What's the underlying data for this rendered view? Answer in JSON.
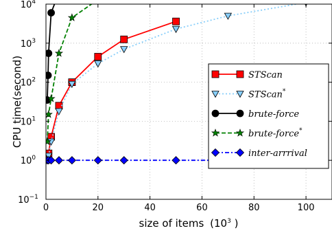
{
  "chart_data": {
    "type": "line",
    "xlabel": "size of items",
    "xlabel_unit": "(10",
    "xlabel_unit_exp": "3",
    "xlabel_unit_close": " )",
    "ylabel": "CPU time(second)",
    "xlim": [
      0,
      110
    ],
    "ylim": [
      0.1,
      10000
    ],
    "yscale": "log",
    "grid": true,
    "legend_position": "center-right",
    "x_ticks": [
      0,
      20,
      40,
      60,
      80,
      100
    ],
    "y_ticks": [
      {
        "value": 0.1,
        "base": "10",
        "exp": "−1"
      },
      {
        "value": 1,
        "base": "10",
        "exp": "0"
      },
      {
        "value": 10,
        "base": "10",
        "exp": "1"
      },
      {
        "value": 100,
        "base": "10",
        "exp": "2"
      },
      {
        "value": 1000,
        "base": "10",
        "exp": "3"
      },
      {
        "value": 10000,
        "base": "10",
        "exp": "4"
      }
    ],
    "series": [
      {
        "name": "STScan",
        "name_sup": "",
        "color": "#ff0000",
        "line_style": "solid",
        "marker": "square",
        "x": [
          1,
          2,
          5,
          10,
          20,
          30,
          50
        ],
        "y": [
          1.5,
          4,
          25,
          100,
          450,
          1250,
          3600
        ]
      },
      {
        "name": "STScan",
        "name_sup": "*",
        "color": "#87cefa",
        "line_style": "dotted",
        "marker": "triangle-down",
        "x": [
          1,
          2,
          5,
          10,
          20,
          30,
          50,
          70,
          100
        ],
        "y": [
          1.3,
          3,
          18,
          90,
          300,
          700,
          2300,
          5000,
          11000
        ]
      },
      {
        "name": "brute-force",
        "name_sup": "",
        "color": "#000000",
        "line_style": "solid",
        "marker": "circle",
        "x": [
          0.5,
          0.8,
          1,
          2,
          5
        ],
        "y": [
          35,
          150,
          550,
          6000,
          20000
        ]
      },
      {
        "name": "brute-force",
        "name_sup": "*",
        "color": "#008000",
        "line_style": "dashed",
        "marker": "star",
        "x": [
          0.5,
          1,
          2,
          5,
          10,
          20
        ],
        "y": [
          3,
          15,
          38,
          550,
          4500,
          13000
        ]
      },
      {
        "name": "inter-arrrival",
        "name_sup": "",
        "color": "#0000ff",
        "line_style": "dashdot",
        "marker": "diamond",
        "x": [
          0.5,
          1,
          2,
          5,
          10,
          20,
          30,
          50,
          70,
          100
        ],
        "y": [
          1,
          1,
          1,
          1,
          1,
          1,
          1,
          1,
          1,
          1
        ]
      }
    ]
  }
}
